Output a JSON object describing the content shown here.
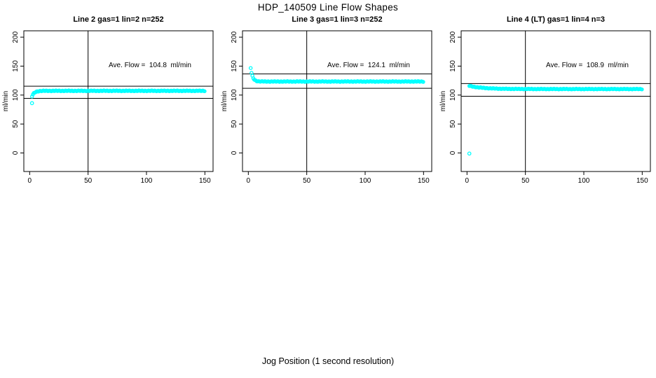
{
  "figure": {
    "title": "HDP_140509  Line Flow Shapes",
    "xlabel": "Jog Position (1 second resolution)"
  },
  "style": {
    "background": "#ffffff",
    "axis_color": "#000000",
    "text_color": "#000000",
    "point_color": "#00ffff"
  },
  "chart_data": [
    {
      "type": "scatter",
      "title": "Line 2 gas=1 lin=2 n=252",
      "annotation": "Ave. Flow =  104.8  ml/min",
      "ave_flow_ml_min": 104.8,
      "ylabel": "ml/min",
      "xticks": [
        0,
        50,
        100,
        150
      ],
      "yticks": [
        0,
        50,
        100,
        150,
        200
      ],
      "xlim": [
        -5,
        157
      ],
      "ylim": [
        -32,
        211
      ],
      "grid": false,
      "legend": "none",
      "vline_x": 50,
      "hlines": [
        115.3,
        94.3
      ],
      "hlines_note": "ave flow +/- 10%",
      "marker": "open-circle",
      "series": [
        {
          "name": "line2-flow",
          "model": {
            "x_from": 2,
            "x_to": 150,
            "step": 0.75,
            "plateau": 107.3,
            "amp": -9.5,
            "tau": 2.0,
            "jitter": 0.55
          },
          "keypoints": [
            [
              2,
              97.8
            ],
            [
              3,
              101.3
            ],
            [
              4,
              103.8
            ],
            [
              5,
              105.2
            ],
            [
              6,
              106.0
            ],
            [
              8,
              106.8
            ],
            [
              10,
              107.1
            ],
            [
              20,
              107.3
            ],
            [
              50,
              107.3
            ],
            [
              100,
              107.3
            ],
            [
              150,
              107.3
            ]
          ],
          "outliers": [
            [
              2,
              86
            ]
          ]
        }
      ]
    },
    {
      "type": "scatter",
      "title": "Line 3 gas=1 lin=3 n=252",
      "annotation": "Ave. Flow =  124.1  ml/min",
      "ave_flow_ml_min": 124.1,
      "ylabel": "ml/min",
      "xticks": [
        0,
        50,
        100,
        150
      ],
      "yticks": [
        0,
        50,
        100,
        150,
        200
      ],
      "xlim": [
        -5,
        157
      ],
      "ylim": [
        -32,
        211
      ],
      "grid": false,
      "legend": "none",
      "vline_x": 50,
      "hlines": [
        136.5,
        111.7
      ],
      "hlines_note": "ave flow +/- 10%",
      "marker": "open-circle",
      "series": [
        {
          "name": "line3-flow",
          "model": {
            "x_from": 2,
            "x_to": 150,
            "step": 0.75,
            "plateau": 123.4,
            "amp": 23.6,
            "tau": 1.6,
            "jitter": 0.55
          },
          "keypoints": [
            [
              2,
              147.0
            ],
            [
              3,
              136.0
            ],
            [
              4,
              130.1
            ],
            [
              5,
              127.0
            ],
            [
              6,
              125.3
            ],
            [
              8,
              124.0
            ],
            [
              10,
              123.6
            ],
            [
              20,
              123.4
            ],
            [
              50,
              123.4
            ],
            [
              100,
              123.4
            ],
            [
              150,
              123.4
            ]
          ],
          "outliers": []
        }
      ]
    },
    {
      "type": "scatter",
      "title": "Line 4 (LT) gas=1 lin=4 n=3",
      "annotation": "Ave. Flow =  108.9  ml/min",
      "ave_flow_ml_min": 108.9,
      "ylabel": "ml/min",
      "xticks": [
        0,
        50,
        100,
        150
      ],
      "yticks": [
        0,
        50,
        100,
        150,
        200
      ],
      "xlim": [
        -5,
        157
      ],
      "ylim": [
        -32,
        211
      ],
      "grid": false,
      "legend": "none",
      "vline_x": 50,
      "hlines": [
        119.8,
        98.0
      ],
      "hlines_note": "ave flow +/- 10%",
      "marker": "open-circle",
      "series": [
        {
          "name": "line4-flow",
          "model": {
            "x_from": 2,
            "x_to": 150,
            "step": 0.75,
            "plateau": 110.4,
            "amp": 5.5,
            "tau": 12.0,
            "jitter": 0.5
          },
          "keypoints": [
            [
              2,
              115.9
            ],
            [
              5,
              114.7
            ],
            [
              10,
              113.1
            ],
            [
              20,
              111.6
            ],
            [
              30,
              110.9
            ],
            [
              50,
              110.5
            ],
            [
              100,
              110.4
            ],
            [
              150,
              110.4
            ]
          ],
          "outliers": [
            [
              2,
              -1
            ]
          ]
        }
      ]
    }
  ]
}
